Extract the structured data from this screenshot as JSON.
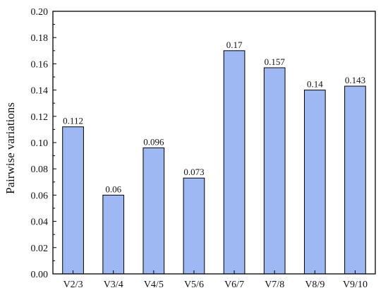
{
  "chart_data": {
    "type": "bar",
    "title": "",
    "xlabel": "",
    "ylabel": "Pairwise variations",
    "categories": [
      "V2/3",
      "V3/4",
      "V4/5",
      "V5/6",
      "V6/7",
      "V7/8",
      "V8/9",
      "V9/10"
    ],
    "values": [
      0.112,
      0.06,
      0.096,
      0.073,
      0.17,
      0.157,
      0.14,
      0.143
    ],
    "data_labels": [
      "0.112",
      "0.06",
      "0.096",
      "0.073",
      "0.17",
      "0.157",
      "0.14",
      "0.143"
    ],
    "ylim": [
      0,
      0.2
    ],
    "yticks": [
      0.0,
      0.02,
      0.04,
      0.06,
      0.08,
      0.1,
      0.12,
      0.14,
      0.16,
      0.18,
      0.2
    ],
    "ytick_labels": [
      "0.00",
      "0.02",
      "0.04",
      "0.06",
      "0.08",
      "0.10",
      "0.12",
      "0.14",
      "0.16",
      "0.18",
      "0.20"
    ],
    "grid": false,
    "legend": "none",
    "bar_color": "#9db8f2",
    "bar_edge_color": "#000000"
  }
}
